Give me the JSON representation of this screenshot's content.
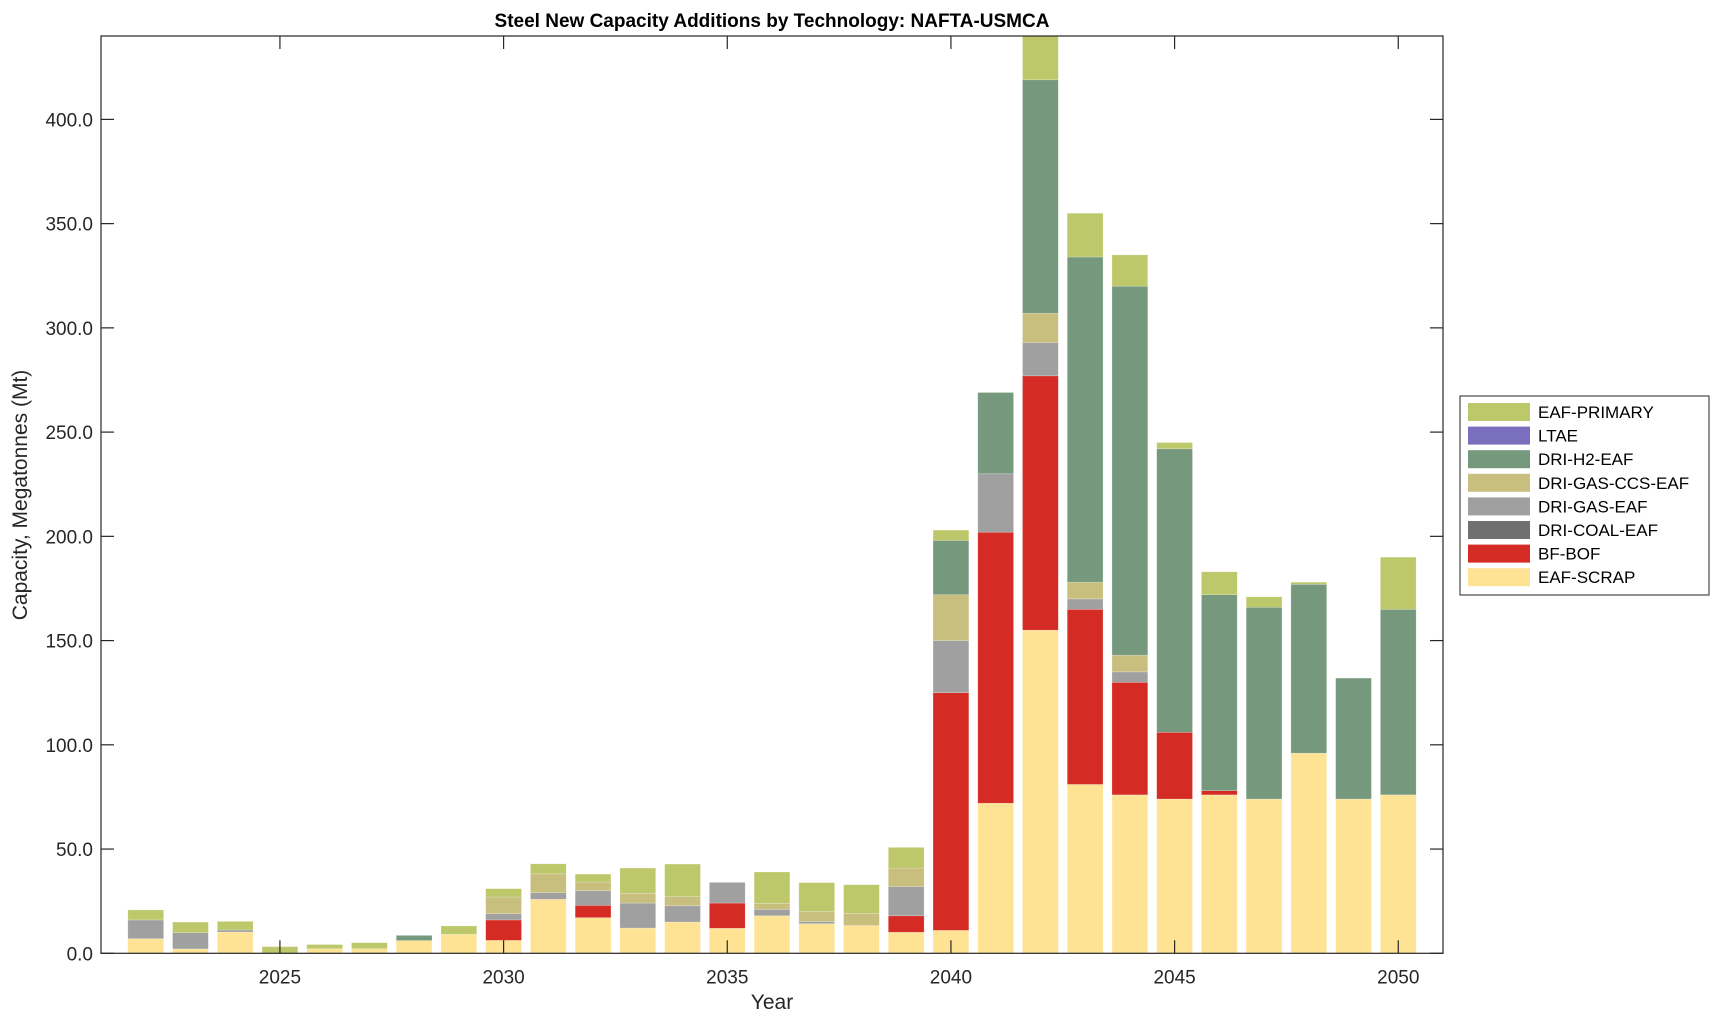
{
  "chart_data": {
    "type": "bar",
    "stacked": true,
    "title": "Steel New Capacity Additions by Technology: NAFTA-USMCA",
    "xlabel": "Year",
    "ylabel": "Capacity, Megatonnes (Mt)",
    "xlim": [
      2021,
      2051
    ],
    "ylim": [
      0,
      440
    ],
    "xticks": [
      2025,
      2030,
      2035,
      2040,
      2045,
      2050
    ],
    "yticks": [
      0,
      50,
      100,
      150,
      200,
      250,
      300,
      350,
      400
    ],
    "ytick_labels": [
      "0.0",
      "50.0",
      "100.0",
      "150.0",
      "200.0",
      "250.0",
      "300.0",
      "350.0",
      "400.0"
    ],
    "grid": false,
    "legend_position": "right-outside",
    "categories": [
      2022,
      2023,
      2024,
      2025,
      2026,
      2027,
      2028,
      2029,
      2030,
      2031,
      2032,
      2033,
      2034,
      2035,
      2036,
      2037,
      2038,
      2039,
      2040,
      2041,
      2042,
      2043,
      2044,
      2045,
      2046,
      2047,
      2048,
      2049,
      2050
    ],
    "series": [
      {
        "name": "EAF-SCRAP",
        "color": "#fee394",
        "values": [
          7,
          2.1,
          10.2,
          0,
          2.2,
          2.2,
          6.1,
          9.1,
          6.2,
          25.9,
          17.1,
          12.1,
          15,
          12,
          18,
          14.2,
          13.3,
          10.1,
          11,
          72,
          155,
          81,
          76,
          74,
          76,
          74,
          96,
          74,
          76
        ]
      },
      {
        "name": "BF-BOF",
        "color": "#d42b25",
        "values": [
          0,
          0,
          0,
          0,
          0,
          0,
          0,
          0,
          9.8,
          0,
          5.9,
          0,
          0,
          12.1,
          0,
          0,
          0,
          7.9,
          114,
          130,
          122,
          84,
          54,
          32,
          2,
          0,
          0,
          0,
          0
        ]
      },
      {
        "name": "DRI-COAL-EAF",
        "color": "#707070",
        "values": [
          0,
          0,
          0,
          0,
          0,
          0,
          0,
          0,
          0,
          0,
          0,
          0,
          0,
          0,
          0,
          0,
          0,
          0,
          0,
          0,
          0,
          0,
          0,
          0,
          0,
          0,
          0,
          0,
          0
        ]
      },
      {
        "name": "DRI-GAS-EAF",
        "color": "#a0a0a0",
        "values": [
          9,
          7.8,
          1,
          0,
          0,
          0,
          0,
          0,
          3,
          3.2,
          7,
          12,
          7.8,
          9.9,
          3.1,
          1,
          0,
          14,
          25,
          28,
          16,
          5,
          5,
          0,
          0,
          0,
          0,
          0,
          0
        ]
      },
      {
        "name": "DRI-GAS-CCS-EAF",
        "color": "#c8be7e",
        "values": [
          0,
          0,
          0,
          0,
          0,
          0,
          0,
          0,
          8,
          9,
          4.2,
          4.7,
          4.4,
          0,
          2.9,
          4.9,
          5.9,
          8.9,
          22,
          0,
          14,
          8,
          8,
          0,
          0,
          0,
          0,
          0,
          0
        ]
      },
      {
        "name": "DRI-H2-EAF",
        "color": "#76997e",
        "values": [
          0,
          0,
          0,
          0,
          0,
          0,
          2.5,
          0,
          0,
          0,
          0,
          0,
          0,
          0,
          0,
          0,
          0,
          0,
          26,
          39,
          112,
          156,
          177,
          136,
          94,
          92,
          81,
          58,
          89
        ]
      },
      {
        "name": "LTAE",
        "color": "#7a6fbf",
        "values": [
          0,
          0,
          0,
          0,
          0,
          0,
          0,
          0,
          0,
          0,
          0,
          0,
          0,
          0,
          0,
          0,
          0,
          0,
          0,
          0,
          0,
          0,
          0,
          0,
          0,
          0,
          0,
          0,
          0
        ]
      },
      {
        "name": "EAF-PRIMARY",
        "color": "#bdc86a",
        "values": [
          4.8,
          5.1,
          4.1,
          3.2,
          2,
          2.9,
          0,
          4,
          4,
          4.8,
          3.8,
          12.1,
          15.6,
          0,
          15,
          13.8,
          13.7,
          9.9,
          5,
          0,
          29,
          21,
          15,
          3,
          11,
          5,
          1,
          0,
          25
        ]
      }
    ]
  }
}
